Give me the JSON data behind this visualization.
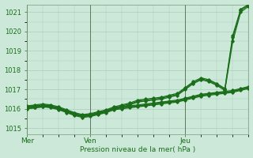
{
  "bg_color": "#cce8d8",
  "line_color": "#1a6e1a",
  "grid_color": "#aacebb",
  "ylim": [
    1014.7,
    1021.4
  ],
  "yticks": [
    1015,
    1016,
    1017,
    1018,
    1019,
    1020,
    1021
  ],
  "bottom_label": "Pression niveau de la mer( hPa )",
  "figsize": [
    3.2,
    2.0
  ],
  "dpi": 100,
  "day_labels": [
    "Mer",
    "Ven",
    "Jeu"
  ],
  "day_positions": [
    0,
    8,
    20
  ],
  "xlim": [
    0,
    28
  ],
  "series": [
    {
      "y": [
        1016.0,
        1016.05,
        1016.1,
        1016.1,
        1016.0,
        1015.85,
        1015.7,
        1015.6,
        1015.65,
        1015.75,
        1015.85,
        1016.0,
        1016.1,
        1016.2,
        1016.35,
        1016.4,
        1016.45,
        1016.5,
        1016.6,
        1016.7,
        1017.0,
        1017.3,
        1017.5,
        1017.4,
        1017.2,
        1016.95,
        1019.5,
        1021.0,
        1021.3
      ]
    },
    {
      "y": [
        1016.1,
        1016.15,
        1016.2,
        1016.15,
        1016.05,
        1015.9,
        1015.75,
        1015.65,
        1015.7,
        1015.8,
        1015.9,
        1016.05,
        1016.15,
        1016.25,
        1016.4,
        1016.45,
        1016.5,
        1016.55,
        1016.65,
        1016.75,
        1017.05,
        1017.35,
        1017.55,
        1017.45,
        1017.25,
        1017.0,
        1019.7,
        1021.1,
        1021.35
      ]
    },
    {
      "y": [
        1016.15,
        1016.2,
        1016.25,
        1016.2,
        1016.1,
        1015.95,
        1015.8,
        1015.7,
        1015.75,
        1015.85,
        1015.95,
        1016.1,
        1016.2,
        1016.3,
        1016.45,
        1016.5,
        1016.55,
        1016.6,
        1016.7,
        1016.8,
        1017.1,
        1017.4,
        1017.6,
        1017.5,
        1017.3,
        1017.05,
        1019.8,
        1021.15,
        1021.4
      ]
    },
    {
      "y": [
        1016.05,
        1016.1,
        1016.15,
        1016.1,
        1016.0,
        1015.85,
        1015.7,
        1015.6,
        1015.65,
        1015.75,
        1015.85,
        1016.0,
        1016.05,
        1016.1,
        1016.15,
        1016.2,
        1016.25,
        1016.3,
        1016.35,
        1016.4,
        1016.5,
        1016.6,
        1016.7,
        1016.75,
        1016.8,
        1016.85,
        1016.9,
        1017.0,
        1017.1
      ]
    },
    {
      "y": [
        1016.1,
        1016.15,
        1016.2,
        1016.15,
        1016.05,
        1015.9,
        1015.75,
        1015.65,
        1015.7,
        1015.8,
        1015.9,
        1016.05,
        1016.1,
        1016.15,
        1016.2,
        1016.25,
        1016.3,
        1016.35,
        1016.4,
        1016.45,
        1016.55,
        1016.65,
        1016.75,
        1016.8,
        1016.85,
        1016.9,
        1016.95,
        1017.05,
        1017.15
      ]
    },
    {
      "y": [
        1016.0,
        1016.05,
        1016.1,
        1016.05,
        1015.95,
        1015.8,
        1015.65,
        1015.55,
        1015.6,
        1015.7,
        1015.8,
        1015.95,
        1016.0,
        1016.05,
        1016.1,
        1016.15,
        1016.2,
        1016.25,
        1016.3,
        1016.35,
        1016.45,
        1016.55,
        1016.65,
        1016.7,
        1016.75,
        1016.8,
        1016.85,
        1016.95,
        1017.05
      ]
    },
    {
      "y": [
        1016.05,
        1016.1,
        1016.15,
        1016.1,
        1016.0,
        1015.85,
        1015.7,
        1015.6,
        1015.65,
        1015.75,
        1015.85,
        1016.0,
        1016.05,
        1016.1,
        1016.15,
        1016.2,
        1016.25,
        1016.3,
        1016.35,
        1016.4,
        1016.5,
        1016.6,
        1016.7,
        1016.75,
        1016.8,
        1016.85,
        1016.9,
        1017.0,
        1017.1
      ]
    }
  ]
}
